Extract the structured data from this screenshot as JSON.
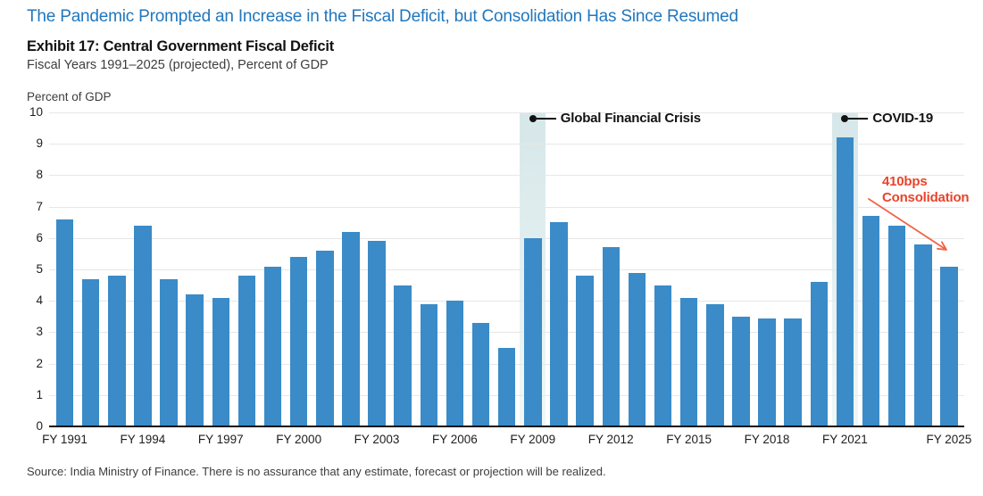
{
  "header": {
    "title": "The Pandemic Prompted an Increase in the Fiscal Deficit, but Consolidation Has Since Resumed",
    "exhibit_title": "Exhibit 17: Central Government Fiscal Deficit",
    "subtitle": "Fiscal Years 1991–2025 (projected), Percent of GDP"
  },
  "chart_data": {
    "type": "bar",
    "title": "Central Government Fiscal Deficit",
    "xlabel": "",
    "ylabel": "Percent of GDP",
    "ylim": [
      0,
      10
    ],
    "yticks": [
      0,
      1,
      2,
      3,
      4,
      5,
      6,
      7,
      8,
      9,
      10
    ],
    "grid": true,
    "legend": "none",
    "categories": [
      "FY 1991",
      "FY 1992",
      "FY 1993",
      "FY 1994",
      "FY 1995",
      "FY 1996",
      "FY 1997",
      "FY 1998",
      "FY 1999",
      "FY 2000",
      "FY 2001",
      "FY 2002",
      "FY 2003",
      "FY 2004",
      "FY 2005",
      "FY 2006",
      "FY 2007",
      "FY 2008",
      "FY 2009",
      "FY 2010",
      "FY 2011",
      "FY 2012",
      "FY 2013",
      "FY 2014",
      "FY 2015",
      "FY 2016",
      "FY 2017",
      "FY 2018",
      "FY 2019",
      "FY 2020",
      "FY 2021",
      "FY 2022",
      "FY 2023",
      "FY 2024",
      "FY 2025"
    ],
    "values": [
      6.6,
      4.7,
      4.8,
      6.4,
      4.7,
      4.2,
      4.1,
      4.8,
      5.1,
      5.4,
      5.6,
      6.2,
      5.9,
      4.5,
      3.9,
      4.0,
      3.3,
      2.5,
      6.0,
      6.5,
      4.8,
      5.7,
      4.9,
      4.5,
      4.1,
      3.9,
      3.5,
      3.45,
      3.45,
      4.6,
      9.2,
      6.7,
      6.4,
      5.8,
      5.1
    ],
    "x_axis_labels": [
      "FY 1991",
      "FY 1994",
      "FY 1997",
      "FY 2000",
      "FY 2003",
      "FY 2006",
      "FY 2009",
      "FY 2012",
      "FY 2015",
      "FY 2018",
      "FY 2021",
      "FY 2025"
    ],
    "highlights": [
      {
        "category": "FY 2009",
        "label": "Global Financial Crisis"
      },
      {
        "category": "FY 2021",
        "label": "COVID-19"
      }
    ],
    "annotation": {
      "line1": "410bps",
      "line2": "Consolidation"
    }
  },
  "theme": {
    "title_color": "#2177bd",
    "bar_color": "#3a8bc8",
    "grid_color": "#e7e7e7",
    "axis_color": "#111111",
    "band_color_top": "#d6e7e9",
    "band_color_bottom": "#f1f7f7",
    "annotation_color": "#e8442b",
    "arrow_color": "#ef6446",
    "callout_color": "#121212"
  },
  "footer": {
    "source_note": "Source: India Ministry of Finance. There is no assurance that any estimate, forecast or projection will be realized."
  }
}
